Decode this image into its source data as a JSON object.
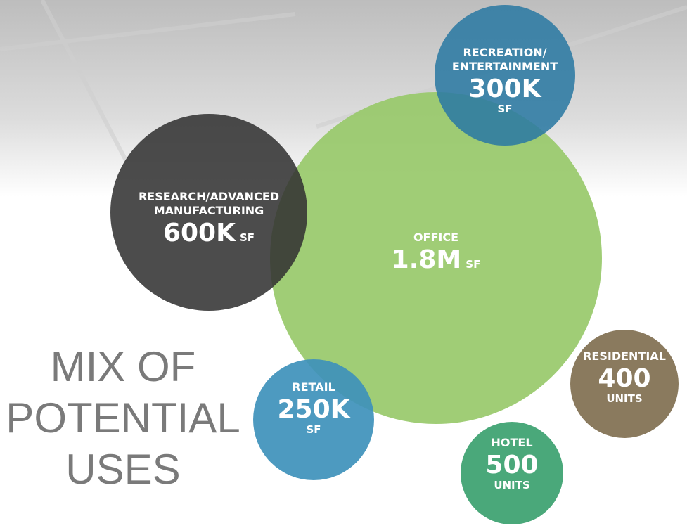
{
  "title": {
    "lines": [
      "MIX OF",
      "POTENTIAL",
      "USES"
    ]
  },
  "bubbles": [
    {
      "label": [
        "OFFICE"
      ],
      "value": "1.8M",
      "unit": "SF"
    },
    {
      "label": [
        "RESEARCH/ADVANCED",
        "MANUFACTURING"
      ],
      "value": "600K",
      "unit": "SF"
    },
    {
      "label": [
        "RECREATION/",
        "ENTERTAINMENT"
      ],
      "value": "300K",
      "unit": "SF"
    },
    {
      "label": [
        "RETAIL"
      ],
      "value": "250K",
      "unit": "SF"
    },
    {
      "label": [
        "RESIDENTIAL"
      ],
      "value": "400",
      "unit": "UNITS"
    },
    {
      "label": [
        "HOTEL"
      ],
      "value": "500",
      "unit": "UNITS"
    }
  ]
}
